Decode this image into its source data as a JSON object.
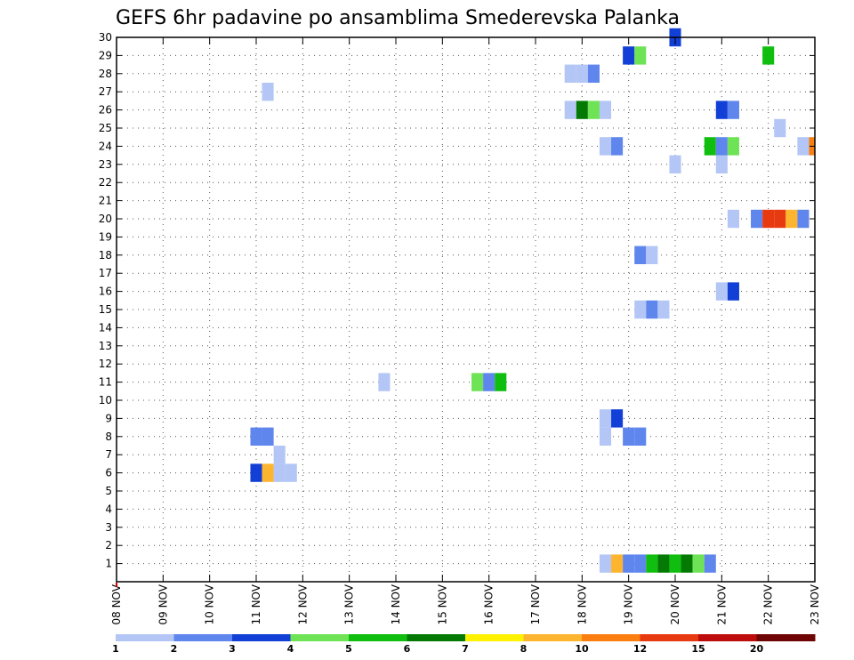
{
  "chart_data": {
    "type": "heatmap",
    "title": "GEFS 6hr padavine po ansamblima Smederevska Palanka",
    "xlabel": "",
    "ylabel": "",
    "x_ticks": [
      "08 NOV",
      "09 NOV",
      "10 NOV",
      "11 NOV",
      "12 NOV",
      "13 NOV",
      "14 NOV",
      "15 NOV",
      "16 NOV",
      "17 NOV",
      "18 NOV",
      "19 NOV",
      "20 NOV",
      "21 NOV",
      "22 NOV",
      "23 NOV"
    ],
    "x_range": [
      0,
      60
    ],
    "x_unit": "6hr steps from 08 NOV 00Z",
    "y_ticks": [
      1,
      2,
      3,
      4,
      5,
      6,
      7,
      8,
      9,
      10,
      11,
      12,
      13,
      14,
      15,
      16,
      17,
      18,
      19,
      20,
      21,
      22,
      23,
      24,
      25,
      26,
      27,
      28,
      29,
      30
    ],
    "ylim": [
      0,
      30
    ],
    "grid": true,
    "colorbar": {
      "labels": [
        "1",
        "2",
        "3",
        "4",
        "5",
        "6",
        "7",
        "8",
        "10",
        "12",
        "15",
        "20"
      ],
      "colors": [
        "#b3c6f5",
        "#5f86ec",
        "#1240d6",
        "#6fe356",
        "#10be10",
        "#047a04",
        "#fff200",
        "#fdb42f",
        "#fb7e10",
        "#e83a10",
        "#bd0c0c",
        "#6e0404"
      ]
    },
    "cells": [
      {
        "x": 12,
        "y": 6,
        "c": 2
      },
      {
        "x": 13,
        "y": 6,
        "c": 7
      },
      {
        "x": 14,
        "y": 6,
        "c": 0
      },
      {
        "x": 15,
        "y": 6,
        "c": 0
      },
      {
        "x": 14,
        "y": 7,
        "c": 0
      },
      {
        "x": 12,
        "y": 8,
        "c": 1
      },
      {
        "x": 13,
        "y": 8,
        "c": 1
      },
      {
        "x": 13,
        "y": 27,
        "c": 0
      },
      {
        "x": 23,
        "y": 11,
        "c": 0
      },
      {
        "x": 31,
        "y": 11,
        "c": 3
      },
      {
        "x": 32,
        "y": 11,
        "c": 1
      },
      {
        "x": 33,
        "y": 11,
        "c": 4
      },
      {
        "x": 39,
        "y": 28,
        "c": 0
      },
      {
        "x": 40,
        "y": 28,
        "c": 0
      },
      {
        "x": 41,
        "y": 28,
        "c": 1
      },
      {
        "x": 39,
        "y": 26,
        "c": 0
      },
      {
        "x": 40,
        "y": 26,
        "c": 5
      },
      {
        "x": 41,
        "y": 26,
        "c": 3
      },
      {
        "x": 42,
        "y": 26,
        "c": 0
      },
      {
        "x": 42,
        "y": 24,
        "c": 0
      },
      {
        "x": 43,
        "y": 24,
        "c": 1
      },
      {
        "x": 44,
        "y": 29,
        "c": 2
      },
      {
        "x": 45,
        "y": 29,
        "c": 3
      },
      {
        "x": 48,
        "y": 30,
        "c": 2
      },
      {
        "x": 48,
        "y": 23,
        "c": 0
      },
      {
        "x": 52,
        "y": 23,
        "c": 0
      },
      {
        "x": 51,
        "y": 24,
        "c": 4
      },
      {
        "x": 52,
        "y": 24,
        "c": 1
      },
      {
        "x": 53,
        "y": 24,
        "c": 3
      },
      {
        "x": 52,
        "y": 26,
        "c": 2
      },
      {
        "x": 53,
        "y": 26,
        "c": 1
      },
      {
        "x": 56,
        "y": 29,
        "c": 4
      },
      {
        "x": 57,
        "y": 25,
        "c": 0
      },
      {
        "x": 59,
        "y": 24,
        "c": 0
      },
      {
        "x": 60,
        "y": 24,
        "c": 8
      },
      {
        "x": 53,
        "y": 20,
        "c": 0
      },
      {
        "x": 55,
        "y": 20,
        "c": 1
      },
      {
        "x": 56,
        "y": 20,
        "c": 9
      },
      {
        "x": 57,
        "y": 20,
        "c": 9
      },
      {
        "x": 58,
        "y": 20,
        "c": 7
      },
      {
        "x": 59,
        "y": 20,
        "c": 1
      },
      {
        "x": 45,
        "y": 18,
        "c": 1
      },
      {
        "x": 46,
        "y": 18,
        "c": 0
      },
      {
        "x": 45,
        "y": 15,
        "c": 0
      },
      {
        "x": 46,
        "y": 15,
        "c": 1
      },
      {
        "x": 47,
        "y": 15,
        "c": 0
      },
      {
        "x": 52,
        "y": 16,
        "c": 0
      },
      {
        "x": 53,
        "y": 16,
        "c": 2
      },
      {
        "x": 42,
        "y": 9,
        "c": 0
      },
      {
        "x": 43,
        "y": 9,
        "c": 2
      },
      {
        "x": 42,
        "y": 8,
        "c": 0
      },
      {
        "x": 44,
        "y": 8,
        "c": 1
      },
      {
        "x": 45,
        "y": 8,
        "c": 1
      },
      {
        "x": 42,
        "y": 1,
        "c": 0
      },
      {
        "x": 43,
        "y": 1,
        "c": 7
      },
      {
        "x": 44,
        "y": 1,
        "c": 1
      },
      {
        "x": 45,
        "y": 1,
        "c": 1
      },
      {
        "x": 46,
        "y": 1,
        "c": 4
      },
      {
        "x": 47,
        "y": 1,
        "c": 5
      },
      {
        "x": 48,
        "y": 1,
        "c": 4
      },
      {
        "x": 49,
        "y": 1,
        "c": 5
      },
      {
        "x": 50,
        "y": 1,
        "c": 3
      },
      {
        "x": 51,
        "y": 1,
        "c": 1
      }
    ]
  }
}
